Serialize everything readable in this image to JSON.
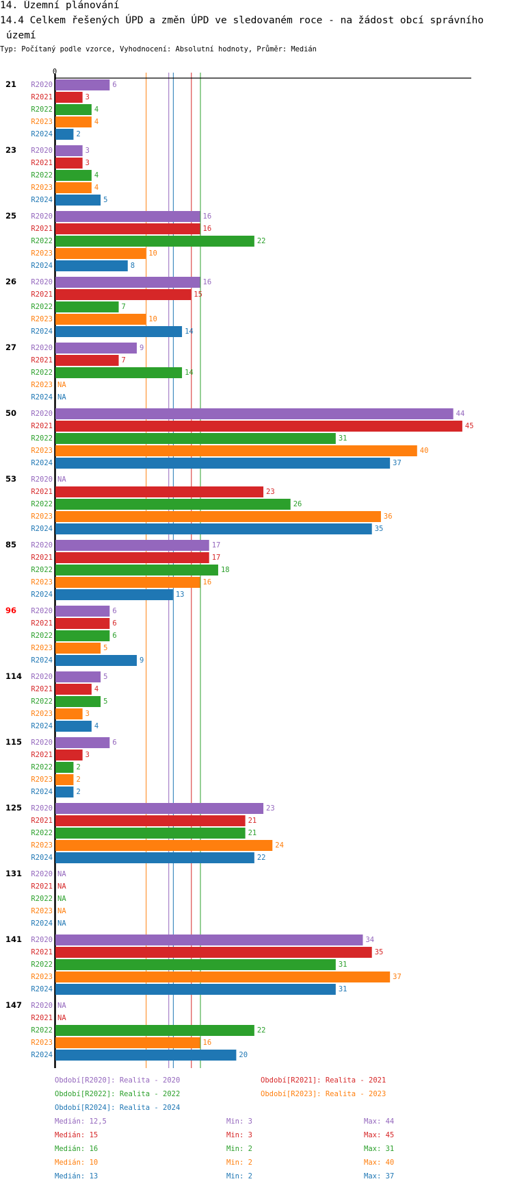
{
  "header": {
    "section_title": "14. Územní plánování",
    "chart_title_line1": "14.4 Celkem řešených ÚPD a změn ÚPD ve sledovaném roce - na žádost obcí správního",
    "chart_title_line2": "území",
    "subtitle": "Typ: Počítaný podle vzorce, Vyhodnocení: Absolutní hodnoty, Průměr: Medián"
  },
  "chart_data": {
    "type": "bar",
    "orientation": "horizontal",
    "title": "14.4 Celkem řešených ÚPD a změn ÚPD ve sledovaném roce - na žádost obcí správního území",
    "xlim": [
      0,
      45
    ],
    "x_tick_labels": [
      "0"
    ],
    "na_label": "NA",
    "categories": [
      "21",
      "23",
      "25",
      "26",
      "27",
      "50",
      "53",
      "85",
      "96",
      "114",
      "115",
      "125",
      "131",
      "141",
      "147"
    ],
    "highlighted_category": "96",
    "highlight_color": "#ff0000",
    "series": [
      {
        "name": "R2020",
        "color": "#9467bd",
        "values": [
          6,
          3,
          16,
          16,
          9,
          44,
          null,
          17,
          6,
          5,
          6,
          23,
          null,
          34,
          null
        ]
      },
      {
        "name": "R2021",
        "color": "#d62728",
        "values": [
          3,
          3,
          16,
          15,
          7,
          45,
          23,
          17,
          6,
          4,
          3,
          21,
          null,
          35,
          null
        ]
      },
      {
        "name": "R2022",
        "color": "#2ca02c",
        "values": [
          4,
          4,
          22,
          7,
          14,
          31,
          26,
          18,
          6,
          5,
          2,
          21,
          null,
          31,
          22
        ]
      },
      {
        "name": "R2023",
        "color": "#ff7f0e",
        "values": [
          4,
          4,
          10,
          10,
          null,
          40,
          36,
          16,
          5,
          3,
          2,
          24,
          null,
          37,
          16
        ]
      },
      {
        "name": "R2024",
        "color": "#1f77b4",
        "values": [
          2,
          5,
          8,
          14,
          null,
          37,
          35,
          13,
          9,
          4,
          2,
          22,
          null,
          31,
          20
        ]
      }
    ],
    "median_lines": [
      {
        "series": "R2023",
        "value": 10
      },
      {
        "series": "R2020",
        "value": 12.5
      },
      {
        "series": "R2024",
        "value": 13
      },
      {
        "series": "R2021",
        "value": 15
      },
      {
        "series": "R2022",
        "value": 16
      }
    ],
    "legend": [
      {
        "text": "Období[R2020]: Realita - 2020",
        "color": "#9467bd"
      },
      {
        "text": "Období[R2021]: Realita - 2021",
        "color": "#d62728"
      },
      {
        "text": "Období[R2022]: Realita - 2022",
        "color": "#2ca02c"
      },
      {
        "text": "Období[R2023]: Realita - 2023",
        "color": "#ff7f0e"
      },
      {
        "text": "Období[R2024]: Realita - 2024",
        "color": "#1f77b4"
      }
    ],
    "stats": [
      {
        "color": "#9467bd",
        "median": "Medián: 12,5",
        "min": "Min: 3",
        "max": "Max: 44"
      },
      {
        "color": "#d62728",
        "median": "Medián: 15",
        "min": "Min: 3",
        "max": "Max: 45"
      },
      {
        "color": "#2ca02c",
        "median": "Medián: 16",
        "min": "Min: 2",
        "max": "Max: 31"
      },
      {
        "color": "#ff7f0e",
        "median": "Medián: 10",
        "min": "Min: 2",
        "max": "Max: 40"
      },
      {
        "color": "#1f77b4",
        "median": "Medián: 13",
        "min": "Min: 2",
        "max": "Max: 37"
      }
    ]
  }
}
